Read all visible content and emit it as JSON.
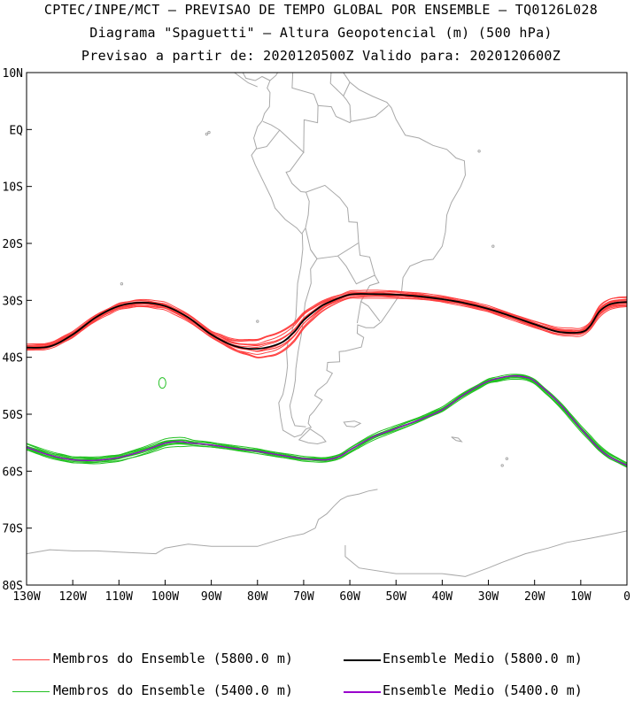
{
  "header": {
    "line1": "CPTEC/INPE/MCT – PREVISAO DE TEMPO GLOBAL POR ENSEMBLE – TQ0126L028",
    "line2": "Diagrama \"Spaguetti\" – Altura Geopotencial (m) (500 hPa)",
    "line3": "Previsao a partir de: 2020120500Z  Valido para: 2020120600Z"
  },
  "legend": {
    "members_5800": "Membros do Ensemble (5800.0 m)",
    "mean_5800": "Ensemble Medio (5800.0 m)",
    "members_5400": "Membros do Ensemble (5400.0 m)",
    "mean_5400": "Ensemble Medio (5400.0 m)"
  },
  "colors": {
    "members_5800": "#ff4040",
    "mean_5800": "#000000",
    "members_5400": "#22c022",
    "mean_5400": "#9900cc",
    "coast": "#a8a8a8"
  },
  "chart_data": {
    "type": "line",
    "title": "Diagrama \"Spaguetti\" – Altura Geopotencial (m) (500 hPa)",
    "xlim": [
      -130,
      0
    ],
    "ylim": [
      -80,
      10
    ],
    "x_ticks": [
      {
        "v": -130,
        "label": "130W"
      },
      {
        "v": -120,
        "label": "120W"
      },
      {
        "v": -110,
        "label": "110W"
      },
      {
        "v": -100,
        "label": "100W"
      },
      {
        "v": -90,
        "label": "90W"
      },
      {
        "v": -80,
        "label": "80W"
      },
      {
        "v": -70,
        "label": "70W"
      },
      {
        "v": -60,
        "label": "60W"
      },
      {
        "v": -50,
        "label": "50W"
      },
      {
        "v": -40,
        "label": "40W"
      },
      {
        "v": -30,
        "label": "30W"
      },
      {
        "v": -20,
        "label": "20W"
      },
      {
        "v": -10,
        "label": "10W"
      },
      {
        "v": 0,
        "label": "0"
      }
    ],
    "y_ticks": [
      {
        "v": 10,
        "label": "10N"
      },
      {
        "v": 0,
        "label": "EQ"
      },
      {
        "v": -10,
        "label": "10S"
      },
      {
        "v": -20,
        "label": "20S"
      },
      {
        "v": -30,
        "label": "30S"
      },
      {
        "v": -40,
        "label": "40S"
      },
      {
        "v": -50,
        "label": "50S"
      },
      {
        "v": -60,
        "label": "60S"
      },
      {
        "v": -70,
        "label": "70S"
      },
      {
        "v": -80,
        "label": "80S"
      }
    ],
    "series": [
      {
        "name": "Ensemble Medio (5800.0 m)",
        "lon": [
          -130,
          -125,
          -120,
          -115,
          -110,
          -105,
          -100,
          -95,
          -90,
          -85,
          -80,
          -75,
          -72,
          -70,
          -67,
          -65,
          -60,
          -55,
          -50,
          -45,
          -40,
          -35,
          -30,
          -25,
          -20,
          -15,
          -10,
          -8,
          -6,
          -4,
          -2,
          0
        ],
        "lat": [
          -38.3,
          -38.1,
          -36.0,
          -33.0,
          -31.0,
          -30.4,
          -31.0,
          -33.0,
          -36.0,
          -38.0,
          -38.5,
          -37.5,
          -35.5,
          -33.5,
          -31.5,
          -30.5,
          -29.0,
          -28.9,
          -29.0,
          -29.3,
          -29.8,
          -30.5,
          -31.5,
          -32.8,
          -34.2,
          -35.5,
          -35.6,
          -34.5,
          -32.0,
          -30.8,
          -30.4,
          -30.3
        ]
      },
      {
        "name": "Ensemble Medio (5400.0 m)",
        "lon": [
          -130,
          -125,
          -120,
          -115,
          -110,
          -105,
          -100,
          -97,
          -95,
          -90,
          -85,
          -80,
          -75,
          -70,
          -65,
          -62,
          -60,
          -55,
          -50,
          -45,
          -40,
          -35,
          -30,
          -25,
          -22,
          -20,
          -15,
          -10,
          -5,
          0
        ],
        "lat": [
          -55.8,
          -57.2,
          -58.0,
          -58.1,
          -57.6,
          -56.5,
          -55.1,
          -54.8,
          -55.0,
          -55.4,
          -56.0,
          -56.5,
          -57.2,
          -57.8,
          -58.0,
          -57.3,
          -56.3,
          -54.0,
          -52.5,
          -51.0,
          -49.2,
          -46.4,
          -44.2,
          -43.3,
          -43.5,
          -44.2,
          -47.8,
          -52.5,
          -56.8,
          -59.0
        ]
      }
    ],
    "members_5800_count": 14,
    "members_5400_count": 10,
    "isolated_contour": {
      "lon": -100.6,
      "lat": -44.5
    }
  }
}
